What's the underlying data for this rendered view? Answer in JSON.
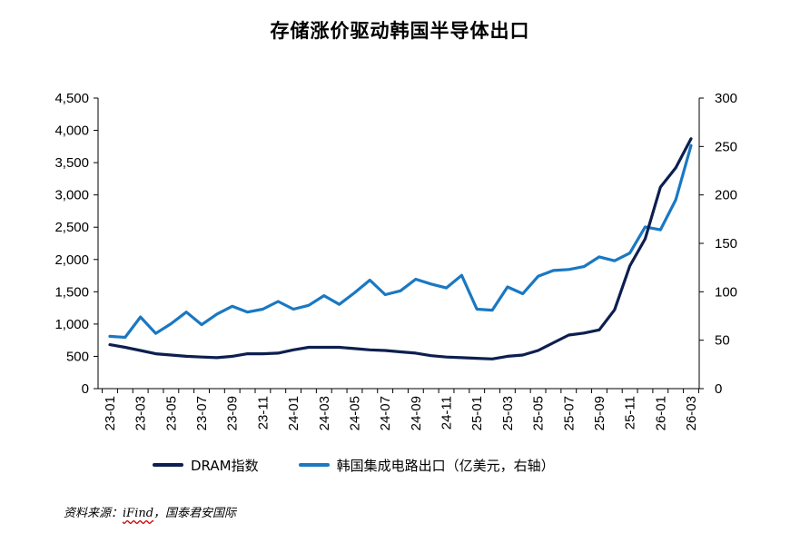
{
  "chart_data": {
    "type": "line",
    "title": "存储涨价驱动韩国半导体出口",
    "x": [
      "23-01",
      "23-02",
      "23-03",
      "23-04",
      "23-05",
      "23-06",
      "23-07",
      "23-08",
      "23-09",
      "23-10",
      "23-11",
      "23-12",
      "24-01",
      "24-02",
      "24-03",
      "24-04",
      "24-05",
      "24-06",
      "24-07",
      "24-08",
      "24-09",
      "24-10",
      "24-11",
      "24-12",
      "25-01",
      "25-02",
      "25-03",
      "25-04",
      "25-05",
      "25-06",
      "25-07",
      "25-08",
      "25-09",
      "25-10",
      "25-11",
      "25-12",
      "26-01",
      "26-02",
      "26-03"
    ],
    "x_tick_labels": [
      "23-01",
      "23-03",
      "23-05",
      "23-07",
      "23-09",
      "23-11",
      "24-01",
      "24-03",
      "24-05",
      "24-07",
      "24-09",
      "24-11",
      "25-01",
      "25-03",
      "25-05",
      "25-07",
      "25-09",
      "25-11",
      "26-01",
      "26-03"
    ],
    "y_left": {
      "ylim": [
        0,
        4500
      ],
      "tick_labels": [
        "0",
        "500",
        "1,000",
        "1,500",
        "2,000",
        "2,500",
        "3,000",
        "3,500",
        "4,000",
        "4,500"
      ]
    },
    "y_right": {
      "ylim": [
        0,
        300
      ],
      "tick_labels": [
        "0",
        "50",
        "100",
        "150",
        "200",
        "250",
        "300"
      ]
    },
    "series": [
      {
        "name": "DRAM指数",
        "axis": "left",
        "color": "#0d1f4f",
        "values": [
          680,
          640,
          590,
          540,
          520,
          500,
          490,
          480,
          500,
          540,
          540,
          550,
          600,
          640,
          640,
          640,
          620,
          600,
          590,
          570,
          550,
          510,
          490,
          480,
          470,
          460,
          500,
          520,
          590,
          710,
          830,
          860,
          910,
          1220,
          1900,
          2320,
          3120,
          3420,
          3870
        ]
      },
      {
        "name": "韩国集成电路出口（亿美元，右轴）",
        "axis": "right",
        "color": "#1a78c2",
        "values": [
          54,
          53,
          74,
          57,
          67,
          79,
          66,
          77,
          85,
          79,
          82,
          90,
          82,
          86,
          96,
          87,
          99,
          112,
          97,
          101,
          113,
          108,
          104,
          117,
          82,
          81,
          105,
          98,
          116,
          122,
          123,
          126,
          136,
          132,
          140,
          167,
          164,
          195,
          251
        ]
      }
    ],
    "grid": false,
    "legend_position": "bottom"
  },
  "footer": {
    "source_prefix": "资料来源：",
    "source_brand": "iFind",
    "source_suffix": "，国泰君安国际"
  }
}
